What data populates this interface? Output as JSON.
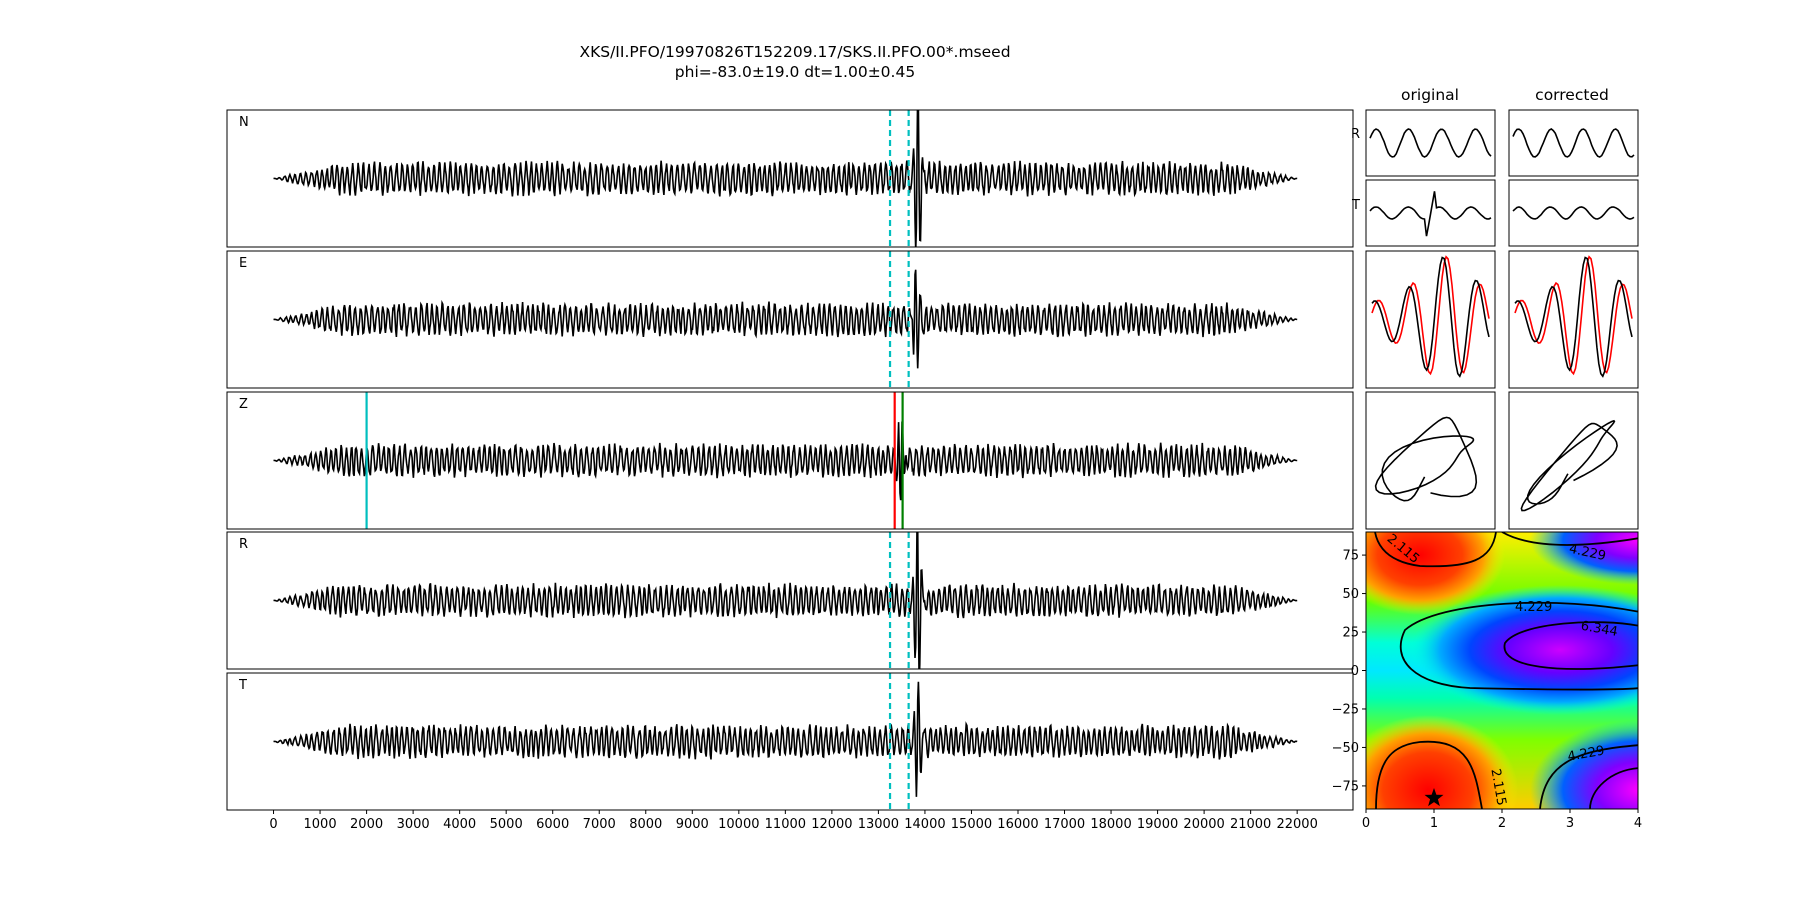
{
  "title_line1": "XKS/II.PFO/19970826T152209.17/SKS.II.PFO.00*.mseed",
  "title_line2": "phi=-83.0±19.0 dt=1.00±0.45",
  "col_titles": {
    "original": "original",
    "corrected": "corrected"
  },
  "chart_data": {
    "type": "line",
    "traces": [
      {
        "label": "N",
        "markers": "window",
        "spike_at": 13850
      },
      {
        "label": "E",
        "markers": "window",
        "spike_at": 13800
      },
      {
        "label": "Z",
        "markers": "picks",
        "spike_at": 13500
      },
      {
        "label": "R",
        "markers": "window",
        "spike_at": 13850
      },
      {
        "label": "T",
        "markers": "window",
        "spike_at": 13850
      }
    ],
    "x_range": [
      -1000,
      23200
    ],
    "x_ticks": [
      "0",
      "1000",
      "2000",
      "3000",
      "4000",
      "5000",
      "6000",
      "7000",
      "8000",
      "9000",
      "10000",
      "11000",
      "12000",
      "13000",
      "14000",
      "15000",
      "16000",
      "17000",
      "18000",
      "19000",
      "20000",
      "21000",
      "22000"
    ],
    "trace_x_range": [
      0,
      22000
    ],
    "window_lines": [
      13250,
      13650
    ],
    "z_picks": [
      {
        "x": 2000,
        "color": "#00bfbf"
      },
      {
        "x": 13350,
        "color": "#ff0000"
      },
      {
        "x": 13520,
        "color": "#008000"
      }
    ],
    "particle_rows": [
      "R",
      "T"
    ],
    "contour": {
      "x_ticks": [
        "0",
        "1",
        "2",
        "3",
        "4"
      ],
      "y_ticks": [
        "75",
        "50",
        "25",
        "0",
        "−25",
        "−50",
        "−75"
      ],
      "x_range": [
        0,
        4
      ],
      "y_range": [
        -90,
        90
      ],
      "levels": [
        "2.115",
        "4.229",
        "6.344"
      ],
      "best": {
        "dt": 1.0,
        "phi": -83
      }
    },
    "colors": {
      "trace": "#000000",
      "window": "#00bfbf",
      "overlay": "#ff0000"
    }
  }
}
